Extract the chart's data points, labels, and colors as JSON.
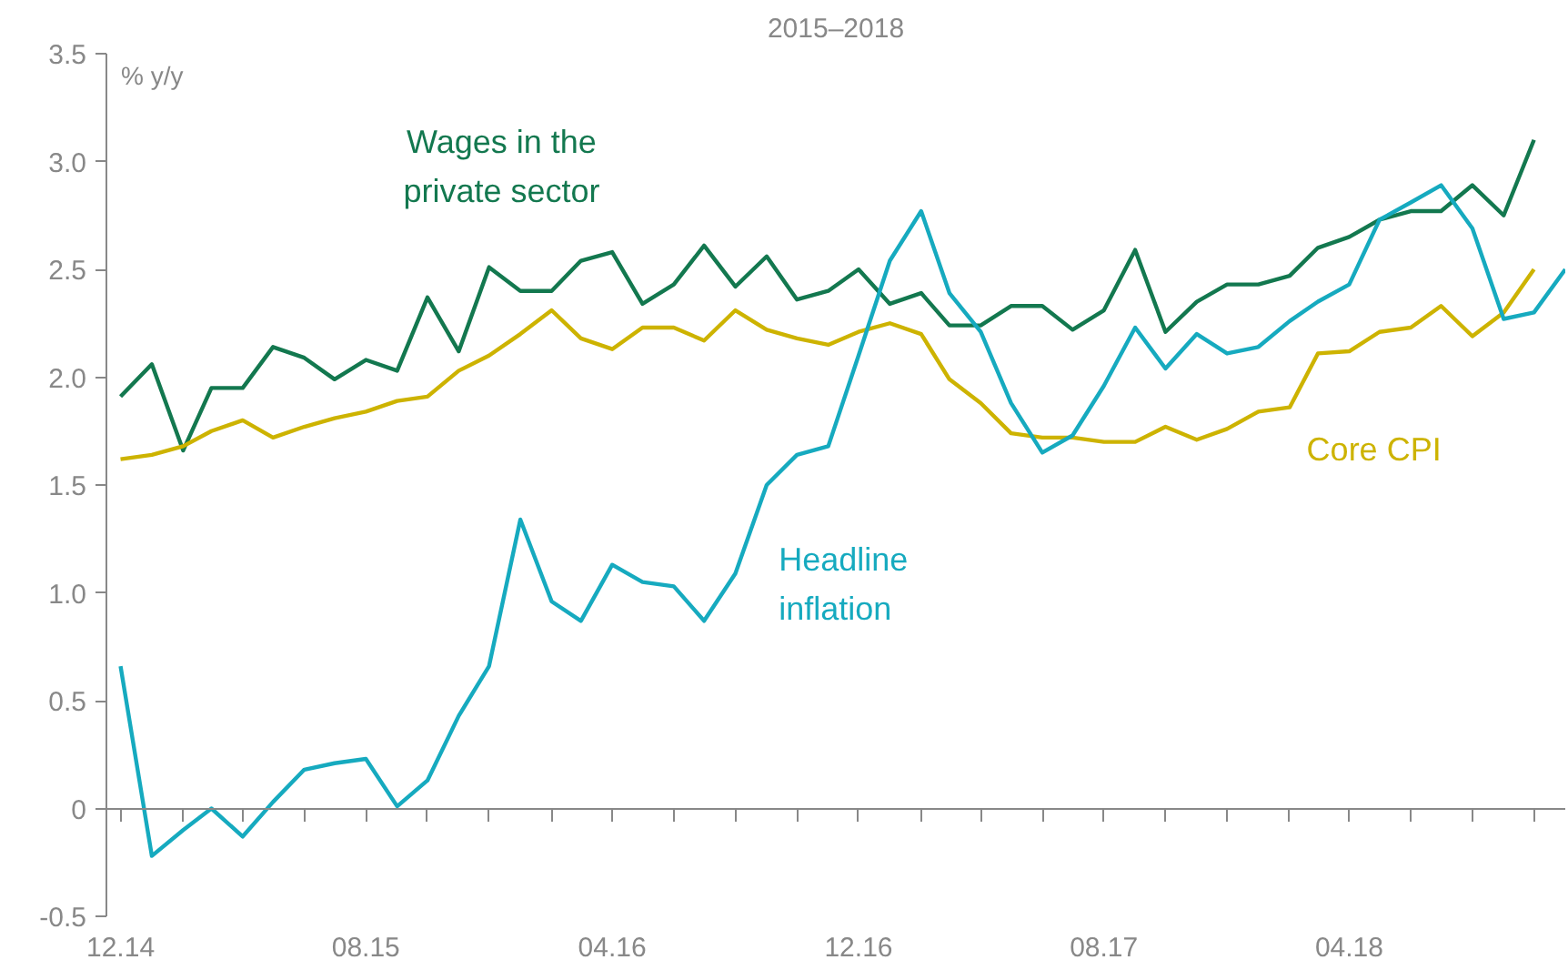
{
  "chart_data": {
    "type": "line",
    "title": "2015–2018",
    "ylabel": "% y/y",
    "x": [
      "2014-12",
      "2015-01",
      "2015-02",
      "2015-03",
      "2015-04",
      "2015-05",
      "2015-06",
      "2015-07",
      "2015-08",
      "2015-09",
      "2015-10",
      "2015-11",
      "2015-12",
      "2016-01",
      "2016-02",
      "2016-03",
      "2016-04",
      "2016-05",
      "2016-06",
      "2016-07",
      "2016-08",
      "2016-09",
      "2016-10",
      "2016-11",
      "2016-12",
      "2017-01",
      "2017-02",
      "2017-03",
      "2017-04",
      "2017-05",
      "2017-06",
      "2017-07",
      "2017-08",
      "2017-09",
      "2017-10",
      "2017-11",
      "2017-12",
      "2018-01",
      "2018-02",
      "2018-03",
      "2018-04",
      "2018-05",
      "2018-06",
      "2018-07",
      "2018-08",
      "2018-09",
      "2018-10",
      "2018-11"
    ],
    "series": [
      {
        "name": "Wages in the private sector",
        "color": "#13784f",
        "values": [
          1.91,
          2.06,
          1.66,
          1.95,
          1.95,
          2.14,
          2.09,
          1.99,
          2.08,
          2.03,
          2.37,
          2.12,
          2.51,
          2.4,
          2.4,
          2.54,
          2.58,
          2.34,
          2.43,
          2.61,
          2.42,
          2.56,
          2.36,
          2.4,
          2.5,
          2.34,
          2.39,
          2.24,
          2.24,
          2.33,
          2.33,
          2.22,
          2.31,
          2.59,
          2.21,
          2.35,
          2.43,
          2.43,
          2.47,
          2.6,
          2.65,
          2.73,
          2.77,
          2.77,
          2.89,
          2.75,
          3.1,
          null
        ]
      },
      {
        "name": "Core CPI",
        "color": "#cdb300",
        "values": [
          1.62,
          1.64,
          1.68,
          1.75,
          1.8,
          1.72,
          1.77,
          1.81,
          1.84,
          1.89,
          1.91,
          2.03,
          2.1,
          2.2,
          2.31,
          2.18,
          2.13,
          2.23,
          2.23,
          2.17,
          2.31,
          2.22,
          2.18,
          2.15,
          2.21,
          2.25,
          2.2,
          1.99,
          1.88,
          1.74,
          1.72,
          1.72,
          1.7,
          1.7,
          1.77,
          1.71,
          1.76,
          1.84,
          1.86,
          2.11,
          2.12,
          2.21,
          2.23,
          2.33,
          2.19,
          2.3,
          2.5,
          null
        ]
      },
      {
        "name": "Headline inflation",
        "color": "#16aabf",
        "values": [
          0.66,
          -0.22,
          -0.1,
          0.0,
          -0.13,
          0.03,
          0.18,
          0.21,
          0.23,
          0.01,
          0.13,
          0.43,
          0.66,
          1.34,
          0.96,
          0.87,
          1.13,
          1.05,
          1.03,
          0.87,
          1.09,
          1.5,
          1.64,
          1.68,
          2.1,
          2.54,
          2.77,
          2.39,
          2.21,
          1.88,
          1.65,
          1.73,
          1.96,
          2.23,
          2.04,
          2.2,
          2.11,
          2.14,
          2.26,
          2.35,
          2.43,
          2.73,
          2.81,
          2.89,
          2.69,
          2.27,
          2.3,
          2.5
        ]
      }
    ],
    "xlim": [
      "2014-11-17",
      "2018-11-01"
    ],
    "xticks": [
      {
        "value": "2014-12",
        "label": "12.14"
      },
      {
        "value": "2015-02",
        "label": null
      },
      {
        "value": "2015-04",
        "label": null
      },
      {
        "value": "2015-06",
        "label": null
      },
      {
        "value": "2015-08",
        "label": "08.15"
      },
      {
        "value": "2015-10",
        "label": null
      },
      {
        "value": "2015-12",
        "label": null
      },
      {
        "value": "2016-02",
        "label": null
      },
      {
        "value": "2016-04",
        "label": "04.16"
      },
      {
        "value": "2016-06",
        "label": null
      },
      {
        "value": "2016-08",
        "label": null
      },
      {
        "value": "2016-10",
        "label": null
      },
      {
        "value": "2016-12",
        "label": "12.16"
      },
      {
        "value": "2017-02",
        "label": null
      },
      {
        "value": "2017-04",
        "label": null
      },
      {
        "value": "2017-06",
        "label": null
      },
      {
        "value": "2017-08",
        "label": "08.17"
      },
      {
        "value": "2017-10",
        "label": null
      },
      {
        "value": "2017-12",
        "label": null
      },
      {
        "value": "2018-02",
        "label": null
      },
      {
        "value": "2018-04",
        "label": "04.18"
      },
      {
        "value": "2018-06",
        "label": null
      },
      {
        "value": "2018-08",
        "label": null
      },
      {
        "value": "2018-10",
        "label": null
      }
    ],
    "ylim": [
      -0.5,
      3.5
    ],
    "yticks": [
      -0.5,
      {
        "value": 0,
        "label": "0"
      },
      0.5,
      {
        "value": 1,
        "label": "1.0"
      },
      1.5,
      {
        "value": 2,
        "label": "2.0"
      },
      2.5,
      {
        "value": 3,
        "label": "3.0"
      },
      3.5
    ],
    "marker": "none",
    "line_style": "solid"
  }
}
